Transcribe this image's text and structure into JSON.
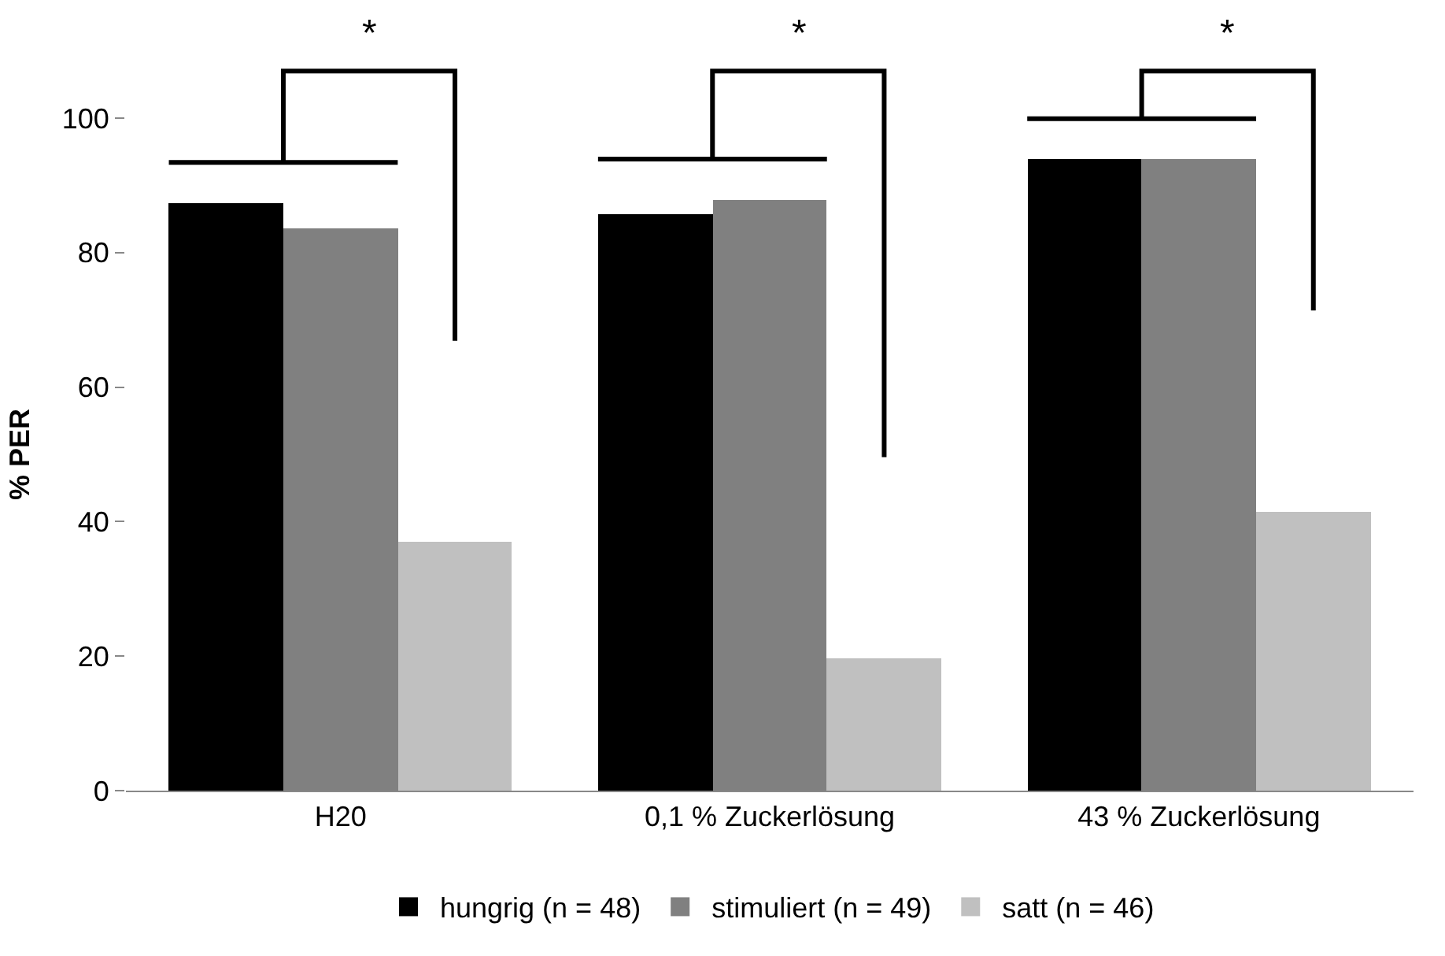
{
  "chart_data": {
    "type": "bar",
    "ylabel": "% PER",
    "categories": [
      "H20",
      "0,1 % Zuckerlösung",
      "43 % Zuckerlösung"
    ],
    "series": [
      {
        "name": "hungrig (n = 48)",
        "color": "#000000",
        "values": [
          87.4,
          85.7,
          93.9
        ]
      },
      {
        "name": "stimuliert (n = 49)",
        "color": "#808080",
        "values": [
          83.6,
          87.9,
          93.9
        ]
      },
      {
        "name": "satt (n = 46)",
        "color": "#c0c0c0",
        "values": [
          36.9,
          19.6,
          41.4
        ]
      }
    ],
    "ylim": [
      0,
      100
    ],
    "yticks": [
      0,
      20,
      40,
      60,
      80,
      100
    ],
    "grid": false,
    "legend": "bottom",
    "annotations": [
      "*",
      "*",
      "*"
    ]
  }
}
